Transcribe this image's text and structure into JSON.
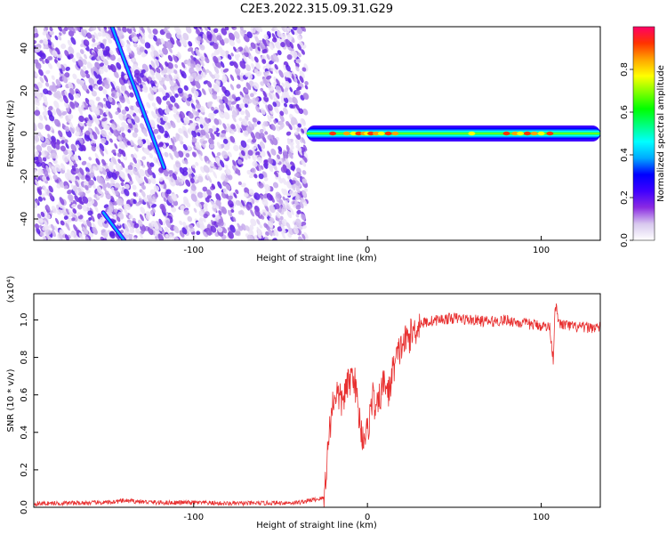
{
  "title": "C2E3.2022.315.09.31.G29",
  "chart_data": [
    {
      "type": "heatmap",
      "title": "C2E3.2022.315.09.31.G29",
      "xlabel": "Height of straight line (km)",
      "ylabel": "Frequency (Hz)",
      "xlim": [
        -192,
        134
      ],
      "ylim": [
        -50,
        50
      ],
      "xticks": [
        -100,
        0,
        100
      ],
      "yticks": [
        -40,
        -20,
        0,
        20,
        40
      ],
      "colorbar": {
        "label": "Normalized spectral amplitude",
        "range": [
          0,
          1
        ],
        "ticks": [
          "0.0",
          "0.2",
          "0.4",
          "0.6",
          "0.8"
        ],
        "colors": [
          "#ffffff",
          "#d8c8ee",
          "#8a2be2",
          "#3f00ff",
          "#0000ff",
          "#00aaff",
          "#00ffff",
          "#00ff7f",
          "#00ff00",
          "#7fff00",
          "#ffff00",
          "#ffa500",
          "#ff3300",
          "#ff0066"
        ]
      },
      "features": {
        "noise_region_x": [
          -192,
          -35
        ],
        "streak_primary": {
          "x": [
            -147,
            -117
          ],
          "y": [
            50,
            -16
          ],
          "peak_amplitude": 0.3
        },
        "streak_secondary": {
          "x": [
            -152,
            -140
          ],
          "y": [
            -37,
            -50
          ],
          "peak_amplitude": 0.3
        },
        "signal_line": {
          "x": [
            -35,
            134
          ],
          "y": 0,
          "peak_amplitude": 0.98
        }
      }
    },
    {
      "type": "line",
      "xlabel": "Height of straight line (km)",
      "ylabel": "SNR (10 * v/v)",
      "y_multiplier": "(x10⁴)",
      "xlim": [
        -192,
        134
      ],
      "ylim": [
        0,
        1.14
      ],
      "xticks": [
        -100,
        0,
        100
      ],
      "yticks": [
        "0.0",
        "0.2",
        "0.4",
        "0.6",
        "0.8",
        "1.0"
      ],
      "color": "#e83030",
      "series": [
        {
          "x": [
            -192,
            -150,
            -140,
            -120,
            -100,
            -80,
            -60,
            -40,
            -25,
            -22,
            -20,
            -18,
            -15,
            -10,
            -8,
            -5,
            -3,
            0,
            3,
            5,
            8,
            10,
            12,
            15,
            20,
            25,
            30,
            40,
            50,
            60,
            70,
            80,
            90,
            100,
            105,
            107,
            108,
            110,
            120,
            134
          ],
          "y": [
            0.02,
            0.025,
            0.035,
            0.025,
            0.025,
            0.02,
            0.022,
            0.025,
            0.05,
            0.4,
            0.55,
            0.62,
            0.56,
            0.68,
            0.72,
            0.5,
            0.38,
            0.4,
            0.6,
            0.5,
            0.62,
            0.68,
            0.6,
            0.75,
            0.87,
            0.92,
            0.98,
            1.0,
            1.01,
            1.0,
            0.99,
            1.0,
            0.98,
            0.97,
            0.96,
            0.78,
            1.1,
            0.98,
            0.96,
            0.96
          ]
        }
      ]
    }
  ]
}
